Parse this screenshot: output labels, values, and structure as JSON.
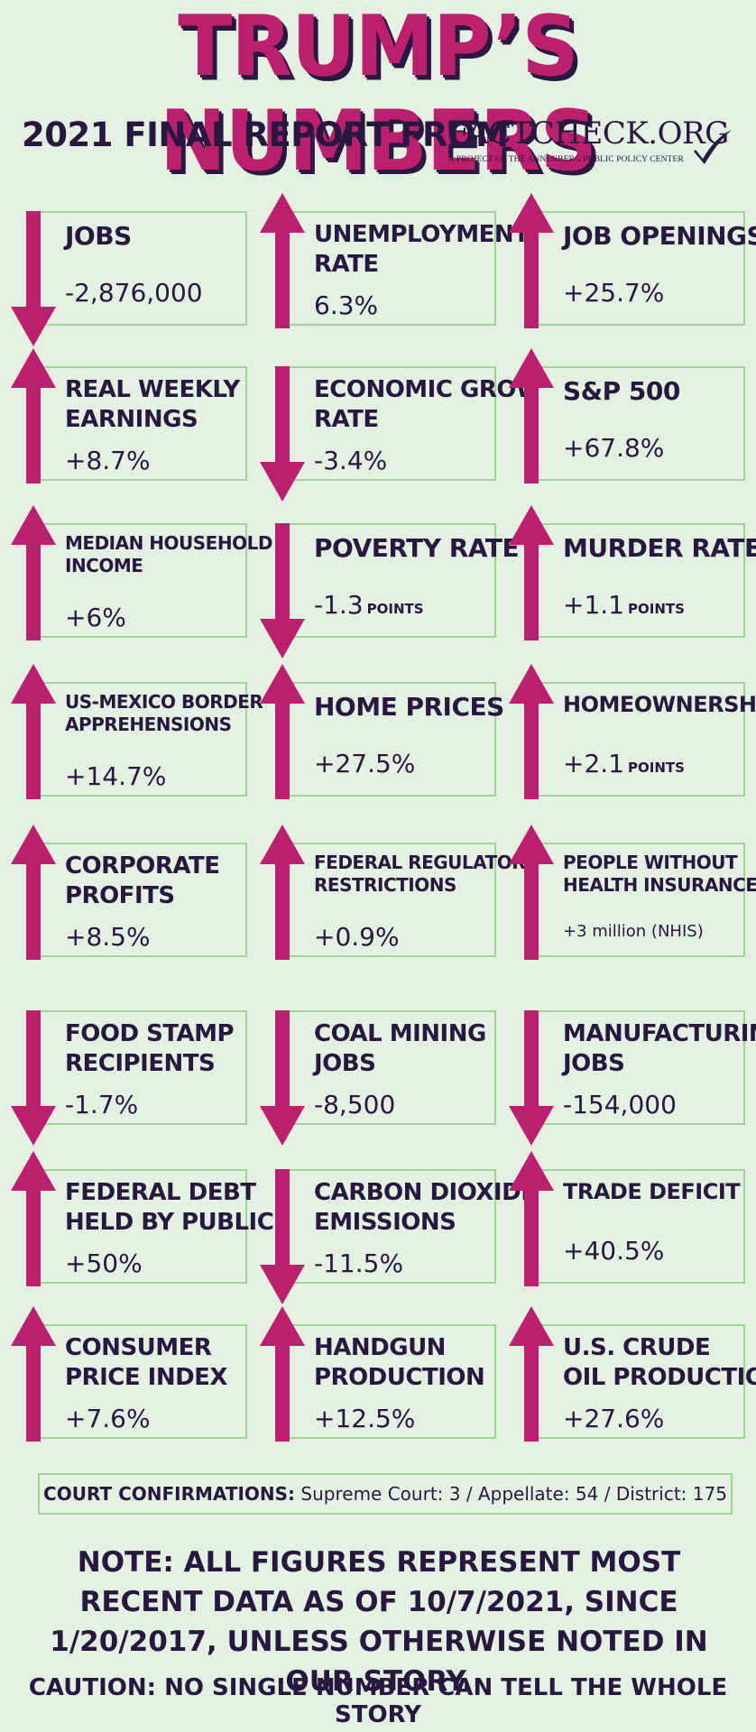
{
  "header": {
    "title": "TRUMP’S NUMBERS",
    "subtitle": "2021 FINAL REPORT FROM",
    "logo_text": "FACTCHECK.ORG",
    "logo_sub": "A PROJECT OF THE ANNENBERG PUBLIC POLICY CENTER"
  },
  "colors": {
    "background": "#e4f1e2",
    "arrow": "#bd1f6f",
    "text": "#27183f",
    "border": "#9fd397"
  },
  "tiles": [
    {
      "label": "JOBS",
      "value": "-2,876,000",
      "direction": "down"
    },
    {
      "label": "UNEMPLOYMENT\nRATE",
      "value": "6.3%",
      "direction": "up"
    },
    {
      "label": "JOB OPENINGS",
      "value": "+25.7%",
      "direction": "up"
    },
    {
      "label": "REAL WEEKLY\nEARNINGS",
      "value": "+8.7%",
      "direction": "up"
    },
    {
      "label": "ECONOMIC GROWTH\nRATE",
      "value": "-3.4%",
      "direction": "down"
    },
    {
      "label": "S&P 500",
      "value": "+67.8%",
      "direction": "up"
    },
    {
      "label": "MEDIAN HOUSEHOLD\nINCOME",
      "value": "+6%",
      "direction": "up"
    },
    {
      "label": "POVERTY RATE",
      "value": "-1.3",
      "unit": "POINTS",
      "direction": "down"
    },
    {
      "label": "MURDER RATE",
      "value": "+1.1",
      "unit": "POINTS",
      "direction": "up"
    },
    {
      "label": "US-MEXICO BORDER\nAPPREHENSIONS",
      "value": "+14.7%",
      "direction": "up"
    },
    {
      "label": "HOME PRICES",
      "value": "+27.5%",
      "direction": "up"
    },
    {
      "label": "HOMEOWNERSHIP",
      "value": "+2.1",
      "unit": "POINTS",
      "direction": "up"
    },
    {
      "label": "CORPORATE\nPROFITS",
      "value": "+8.5%",
      "direction": "up"
    },
    {
      "label": "FEDERAL REGULATORY\nRESTRICTIONS",
      "value": "+0.9%",
      "direction": "up"
    },
    {
      "label": "PEOPLE WITHOUT\nHEALTH INSURANCE",
      "value": "+3 million (NHIS)",
      "direction": "up"
    },
    {
      "label": "FOOD STAMP\nRECIPIENTS",
      "value": "-1.7%",
      "direction": "down"
    },
    {
      "label": "COAL MINING\nJOBS",
      "value": "-8,500",
      "direction": "down"
    },
    {
      "label": "MANUFACTURING\nJOBS",
      "value": "-154,000",
      "direction": "down"
    },
    {
      "label": "FEDERAL DEBT\nHELD BY PUBLIC",
      "value": "+50%",
      "direction": "up"
    },
    {
      "label": "CARBON DIOXIDE\nEMISSIONS",
      "value": "-11.5%",
      "direction": "down"
    },
    {
      "label": "TRADE DEFICIT",
      "value": "+40.5%",
      "direction": "up"
    },
    {
      "label": "CONSUMER\nPRICE INDEX",
      "value": "+7.6%",
      "direction": "up"
    },
    {
      "label": "HANDGUN\nPRODUCTION",
      "value": "+12.5%",
      "direction": "up"
    },
    {
      "label": "U.S. CRUDE\nOIL PRODUCTION",
      "value": "+27.6%",
      "direction": "up"
    }
  ],
  "court": {
    "label": "COURT CONFIRMATIONS:",
    "text": "Supreme Court: 3 / Appellate: 54 / District: 175"
  },
  "note": "NOTE:  ALL FIGURES REPRESENT MOST RECENT DATA AS OF 10/7/2021, SINCE 1/20/2017, UNLESS OTHERWISE NOTED IN OUR STORY.",
  "caution": "CAUTION: NO SINGLE NUMBER CAN TELL THE WHOLE STORY"
}
